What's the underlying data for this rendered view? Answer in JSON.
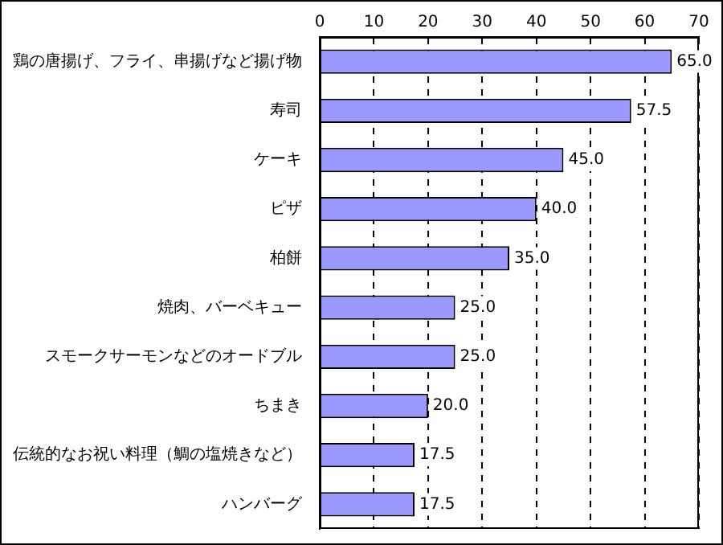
{
  "chart_data": {
    "type": "bar",
    "orientation": "horizontal",
    "categories": [
      "鶏の唐揚げ、フライ、串揚げなど揚げ物",
      "寿司",
      "ケーキ",
      "ピザ",
      "柏餅",
      "焼肉、バーベキュー",
      "スモークサーモンなどのオードブル",
      "ちまき",
      "伝統的なお祝い料理（鯛の塩焼きなど）",
      "ハンバーグ"
    ],
    "values": [
      65,
      57.5,
      45,
      40,
      35,
      25,
      25,
      20,
      17.5,
      17.5
    ],
    "value_labels": [
      "65.0",
      "57.5",
      "45.0",
      "40.0",
      "35.0",
      "25.0",
      "25.0",
      "20.0",
      "17.5",
      "17.5"
    ],
    "color": "#9999ff",
    "xlim": [
      0,
      70
    ],
    "xticks": [
      0,
      10,
      20,
      30,
      40,
      50,
      60,
      70
    ],
    "grid": "x"
  }
}
